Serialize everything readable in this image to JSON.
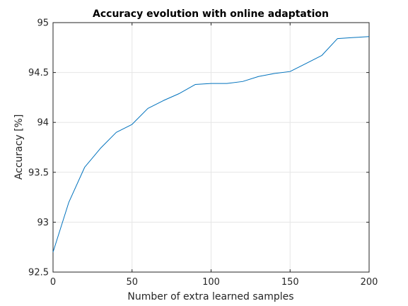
{
  "chart_data": {
    "type": "line",
    "title": "Accuracy evolution with online adaptation",
    "xlabel": "Number of extra learned samples",
    "ylabel": "Accuracy [%]",
    "xlim": [
      0,
      200
    ],
    "ylim": [
      92.5,
      95
    ],
    "xticks": [
      0,
      50,
      100,
      150,
      200
    ],
    "yticks": [
      92.5,
      93,
      93.5,
      94,
      94.5,
      95
    ],
    "xtick_labels": [
      "0",
      "50",
      "100",
      "150",
      "200"
    ],
    "ytick_labels": [
      "92.5",
      "93",
      "93.5",
      "94",
      "94.5",
      "95"
    ],
    "grid": true,
    "colors": {
      "line": "#0072BD",
      "grid": "#e6e6e6",
      "axis": "#262626"
    },
    "series": [
      {
        "x": [
          0,
          10,
          20,
          30,
          40,
          50,
          60,
          70,
          80,
          90,
          100,
          110,
          120,
          130,
          140,
          150,
          160,
          170,
          180,
          190,
          200
        ],
        "values": [
          92.7,
          93.2,
          93.55,
          93.74,
          93.9,
          93.98,
          94.14,
          94.22,
          94.29,
          94.38,
          94.39,
          94.39,
          94.41,
          94.46,
          94.49,
          94.51,
          94.59,
          94.67,
          94.84,
          94.85,
          94.86
        ]
      }
    ]
  }
}
